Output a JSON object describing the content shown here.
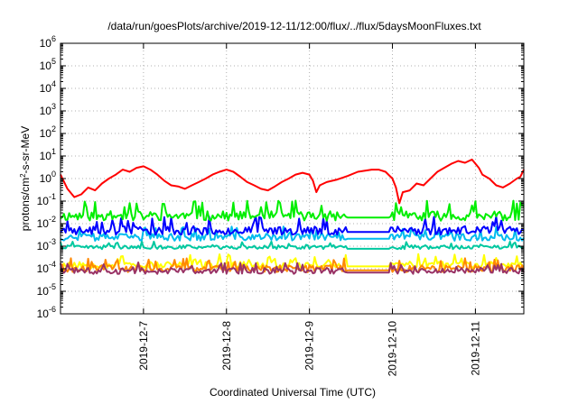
{
  "chart_data": {
    "type": "line",
    "title": "/data/run/goesPlots/archive/2019-12-11/12:00/flux/../flux/5daysMoonFluxes.txt",
    "xlabel": "Coordinated Universal Time (UTC)",
    "ylabel": {
      "prefix": "protons/cm",
      "sup": "2",
      "suffix": "-s-sr-MeV"
    },
    "yscale": "log",
    "ylim": [
      1e-06,
      1000000.0
    ],
    "yticks": [
      {
        "value": 1e-06,
        "base": "10",
        "exp": "-6"
      },
      {
        "value": 1e-05,
        "base": "10",
        "exp": "-5"
      },
      {
        "value": 0.0001,
        "base": "10",
        "exp": "-4"
      },
      {
        "value": 0.001,
        "base": "10",
        "exp": "-3"
      },
      {
        "value": 0.01,
        "base": "10",
        "exp": "-2"
      },
      {
        "value": 0.1,
        "base": "10",
        "exp": "-1"
      },
      {
        "value": 1,
        "base": "10",
        "exp": "0"
      },
      {
        "value": 10,
        "base": "10",
        "exp": "1"
      },
      {
        "value": 100,
        "base": "10",
        "exp": "2"
      },
      {
        "value": 1000,
        "base": "10",
        "exp": "3"
      },
      {
        "value": 10000,
        "base": "10",
        "exp": "4"
      },
      {
        "value": 100000,
        "base": "10",
        "exp": "5"
      },
      {
        "value": 1000000,
        "base": "10",
        "exp": "6"
      }
    ],
    "xlim": [
      "2019-12-06T00:00",
      "2019-12-11T14:00"
    ],
    "xticks": [
      {
        "value": "2019-12-07T00:00",
        "label": "2019-12-7"
      },
      {
        "value": "2019-12-08T00:00",
        "label": "2019-12-8"
      },
      {
        "value": "2019-12-09T00:00",
        "label": "2019-12-9"
      },
      {
        "value": "2019-12-10T00:00",
        "label": "2019-12-10"
      },
      {
        "value": "2019-12-11T00:00",
        "label": "2019-12-11"
      }
    ],
    "grid": true,
    "series": [
      {
        "color": "#ff0000",
        "points": [
          [
            "2019-12-06T00:00",
            1.5
          ],
          [
            "2019-12-06T02:00",
            0.35
          ],
          [
            "2019-12-06T04:00",
            0.15
          ],
          [
            "2019-12-06T06:00",
            0.2
          ],
          [
            "2019-12-06T08:00",
            0.4
          ],
          [
            "2019-12-06T10:00",
            0.3
          ],
          [
            "2019-12-06T12:00",
            0.6
          ],
          [
            "2019-12-06T14:00",
            1.0
          ],
          [
            "2019-12-06T16:00",
            1.5
          ],
          [
            "2019-12-06T18:00",
            2.5
          ],
          [
            "2019-12-06T20:00",
            2.0
          ],
          [
            "2019-12-06T22:00",
            3.0
          ],
          [
            "2019-12-07T00:00",
            3.5
          ],
          [
            "2019-12-07T02:00",
            2.5
          ],
          [
            "2019-12-07T04:00",
            1.5
          ],
          [
            "2019-12-07T06:00",
            0.8
          ],
          [
            "2019-12-07T08:00",
            0.5
          ],
          [
            "2019-12-07T10:00",
            0.45
          ],
          [
            "2019-12-07T12:00",
            0.35
          ],
          [
            "2019-12-07T14:00",
            0.5
          ],
          [
            "2019-12-07T16:00",
            0.7
          ],
          [
            "2019-12-07T18:00",
            1.0
          ],
          [
            "2019-12-07T20:00",
            1.5
          ],
          [
            "2019-12-07T22:00",
            2.0
          ],
          [
            "2019-12-08T00:00",
            2.5
          ],
          [
            "2019-12-08T02:00",
            2.0
          ],
          [
            "2019-12-08T04:00",
            1.2
          ],
          [
            "2019-12-08T06:00",
            0.7
          ],
          [
            "2019-12-08T08:00",
            0.5
          ],
          [
            "2019-12-08T10:00",
            0.35
          ],
          [
            "2019-12-08T12:00",
            0.3
          ],
          [
            "2019-12-08T14:00",
            0.45
          ],
          [
            "2019-12-08T16:00",
            0.7
          ],
          [
            "2019-12-08T18:00",
            1.0
          ],
          [
            "2019-12-08T20:00",
            1.5
          ],
          [
            "2019-12-08T22:00",
            1.8
          ],
          [
            "2019-12-09T00:00",
            1.5
          ],
          [
            "2019-12-09T01:00",
            0.8
          ],
          [
            "2019-12-09T02:00",
            0.25
          ],
          [
            "2019-12-09T03:00",
            0.5
          ],
          [
            "2019-12-09T05:00",
            0.7
          ],
          [
            "2019-12-09T08:00",
            0.9
          ],
          [
            "2019-12-09T11:00",
            1.3
          ],
          [
            "2019-12-09T14:00",
            2.0
          ],
          [
            "2019-12-09T18:00",
            2.5
          ],
          [
            "2019-12-09T20:00",
            2.5
          ],
          [
            "2019-12-09T22:00",
            2.0
          ],
          [
            "2019-12-10T00:00",
            1.0
          ],
          [
            "2019-12-10T01:00",
            0.4
          ],
          [
            "2019-12-10T02:00",
            0.08
          ],
          [
            "2019-12-10T03:00",
            0.25
          ],
          [
            "2019-12-10T05:00",
            0.3
          ],
          [
            "2019-12-10T07:00",
            0.6
          ],
          [
            "2019-12-10T09:00",
            0.5
          ],
          [
            "2019-12-10T11:00",
            1.0
          ],
          [
            "2019-12-10T13:00",
            2.0
          ],
          [
            "2019-12-10T15:00",
            3.0
          ],
          [
            "2019-12-10T17:00",
            4.5
          ],
          [
            "2019-12-10T19:00",
            6.0
          ],
          [
            "2019-12-10T21:00",
            5.0
          ],
          [
            "2019-12-10T23:00",
            7.0
          ],
          [
            "2019-12-11T01:00",
            3.0
          ],
          [
            "2019-12-11T02:00",
            1.5
          ],
          [
            "2019-12-11T04:00",
            1.0
          ],
          [
            "2019-12-11T06:00",
            0.5
          ],
          [
            "2019-12-11T08:00",
            0.4
          ],
          [
            "2019-12-11T10:00",
            0.6
          ],
          [
            "2019-12-11T12:00",
            1.0
          ],
          [
            "2019-12-11T13:00",
            1.2
          ],
          [
            "2019-12-11T14:00",
            2.5
          ]
        ]
      },
      {
        "color": "#00ee00",
        "base": 0.022,
        "spread": 0.6,
        "spike": 4.0,
        "seed": 11
      },
      {
        "color": "#0000ff",
        "base": 0.005,
        "spread": 0.55,
        "spike": 3.5,
        "seed": 23
      },
      {
        "color": "#00bbee",
        "base": 0.0025,
        "spread": 0.45,
        "spike": 2.5,
        "seed": 37
      },
      {
        "color": "#00c8a0",
        "base": 0.0009,
        "spread": 0.25,
        "spike": 1.5,
        "seed": 41
      },
      {
        "color": "#ffff00",
        "base": 0.00015,
        "spread": 0.4,
        "spike": 2.5,
        "seed": 53
      },
      {
        "color": "#ff8800",
        "base": 0.0001,
        "spread": 0.45,
        "spike": 2.5,
        "seed": 61
      },
      {
        "color": "#993366",
        "base": 8e-05,
        "spread": 0.4,
        "spike": 2.0,
        "seed": 73
      }
    ],
    "gap": [
      "2019-12-09T11:00",
      "2019-12-09T23:00"
    ]
  }
}
